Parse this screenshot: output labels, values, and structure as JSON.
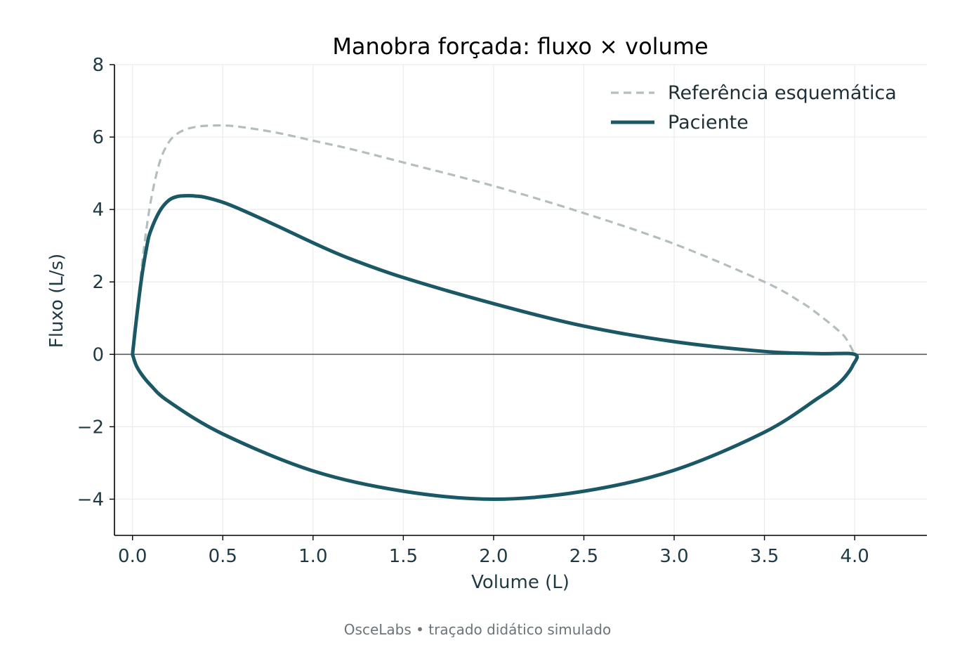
{
  "chart_data": {
    "type": "line",
    "title": "Manobra forçada: fluxo × volume",
    "xlabel": "Volume (L)",
    "ylabel": "Fluxo (L/s)",
    "xlim": [
      -0.1,
      4.4
    ],
    "ylim": [
      -5,
      8
    ],
    "xticks": [
      0.0,
      0.5,
      1.0,
      1.5,
      2.0,
      2.5,
      3.0,
      3.5,
      4.0
    ],
    "xtick_labels": [
      "0.0",
      "0.5",
      "1.0",
      "1.5",
      "2.0",
      "2.5",
      "3.0",
      "3.5",
      "4.0"
    ],
    "yticks": [
      -4,
      -2,
      0,
      2,
      4,
      6,
      8
    ],
    "ytick_labels": [
      "−4",
      "−2",
      "0",
      "2",
      "4",
      "6",
      "8"
    ],
    "grid": true,
    "zero_line": true,
    "legend_position": "top-right",
    "footer": "OsceLabs • traçado didático simulado",
    "series": [
      {
        "name": "Referência esquemática",
        "style": "dashed",
        "color": "#b4bdc0",
        "x": [
          0.0,
          0.03,
          0.06,
          0.1,
          0.15,
          0.2,
          0.25,
          0.3,
          0.35,
          0.4,
          0.5,
          0.6,
          0.8,
          1.0,
          1.2,
          1.5,
          2.0,
          2.5,
          3.0,
          3.5,
          3.7,
          3.8,
          3.9,
          3.95,
          4.0
        ],
        "y": [
          0.0,
          1.4,
          2.8,
          4.2,
          5.3,
          5.85,
          6.1,
          6.22,
          6.28,
          6.31,
          6.32,
          6.28,
          6.12,
          5.9,
          5.68,
          5.3,
          4.65,
          3.9,
          3.05,
          2.0,
          1.45,
          1.1,
          0.7,
          0.45,
          0.0
        ]
      },
      {
        "name": "Paciente",
        "style": "solid",
        "color": "#1b5866",
        "x": [
          0.0,
          0.02,
          0.05,
          0.08,
          0.1,
          0.15,
          0.2,
          0.25,
          0.3,
          0.35,
          0.4,
          0.5,
          0.6,
          0.8,
          1.0,
          1.2,
          1.5,
          2.0,
          2.5,
          3.0,
          3.5,
          3.8,
          4.0,
          3.99,
          3.95,
          3.9,
          3.8,
          3.5,
          3.0,
          2.5,
          2.0,
          1.5,
          1.0,
          0.5,
          0.2,
          0.1,
          0.05,
          0.02,
          0.0
        ],
        "y": [
          0.0,
          0.9,
          2.1,
          3.0,
          3.4,
          3.95,
          4.25,
          4.36,
          4.38,
          4.37,
          4.34,
          4.2,
          4.0,
          3.55,
          3.08,
          2.65,
          2.12,
          1.4,
          0.78,
          0.35,
          0.08,
          0.02,
          0.0,
          -0.3,
          -0.6,
          -0.85,
          -1.2,
          -2.15,
          -3.2,
          -3.78,
          -4.0,
          -3.78,
          -3.22,
          -2.2,
          -1.3,
          -0.85,
          -0.55,
          -0.3,
          0.0
        ]
      }
    ]
  }
}
